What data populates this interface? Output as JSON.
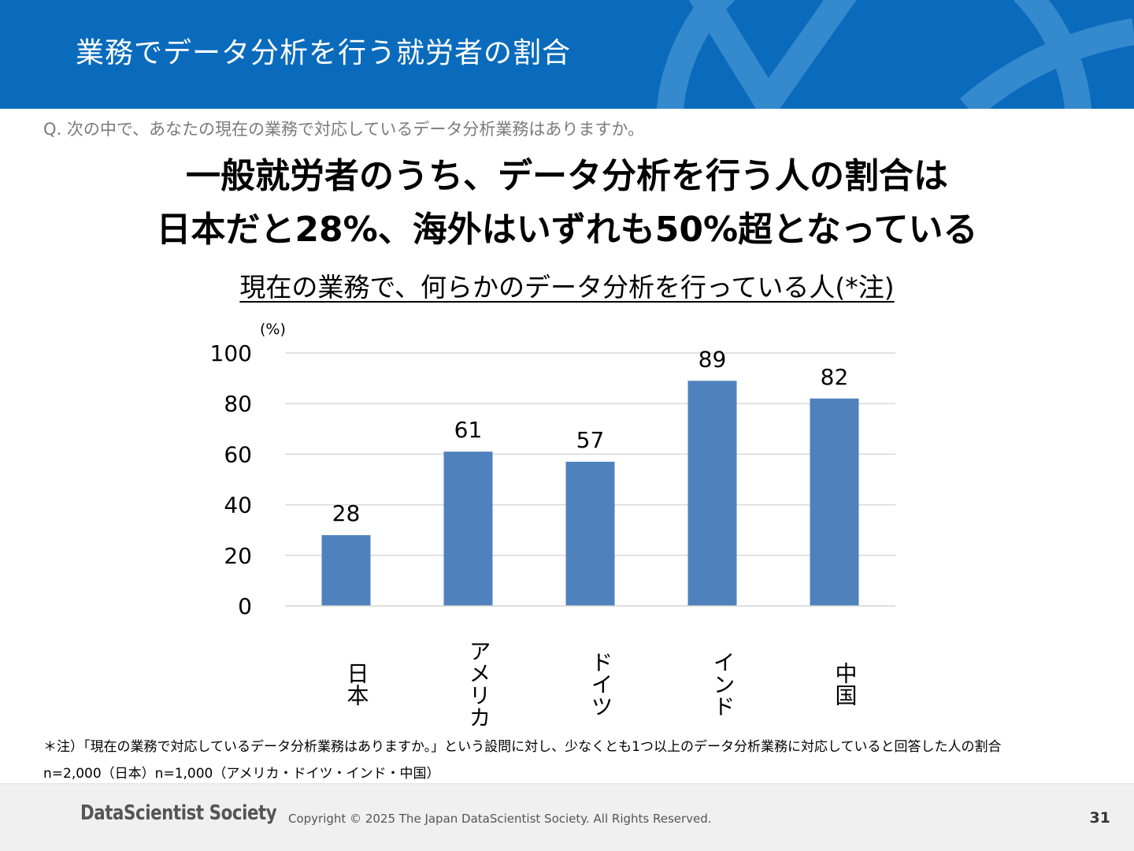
{
  "header": {
    "title": "業務でデータ分析を行う就労者の割合",
    "background_color": "#0a6bbd"
  },
  "question": "Q. 次の中で、あなたの現在の業務で対応しているデータ分析業務はありますか。",
  "headline": {
    "line1": "一般就労者のうち、データ分析を行う人の割合は",
    "line2": "日本だと28%、海外はいずれも50%超となっている"
  },
  "subheading": "現在の業務で、何らかのデータ分析を行っている人(*注)",
  "chart_data": {
    "type": "bar",
    "title": "現在の業務で、何らかのデータ分析を行っている人(*注)",
    "ylabel": "(%)",
    "xlabel": "",
    "categories": [
      "日本",
      "アメリカ",
      "ドイツ",
      "インド",
      "中国"
    ],
    "values": [
      28,
      61,
      57,
      89,
      82
    ],
    "ylim": [
      0,
      100
    ],
    "yticks": [
      0,
      20,
      40,
      60,
      80,
      100
    ],
    "grid": true,
    "bar_color": "#4f81bd",
    "data_labels": true
  },
  "footnotes": {
    "note": "＊注）「現在の業務で対応しているデータ分析業務はありますか。」という設問に対し、少なくとも1つ以上のデータ分析業務に対応していると回答した人の割合",
    "sample": "n=2,000（日本）n=1,000（アメリカ・ドイツ・インド・中国）"
  },
  "footer": {
    "logo": "DataScientist Society",
    "copyright": "Copyright © 2025 The Japan DataScientist Society. All Rights Reserved.",
    "page_number": "31"
  }
}
